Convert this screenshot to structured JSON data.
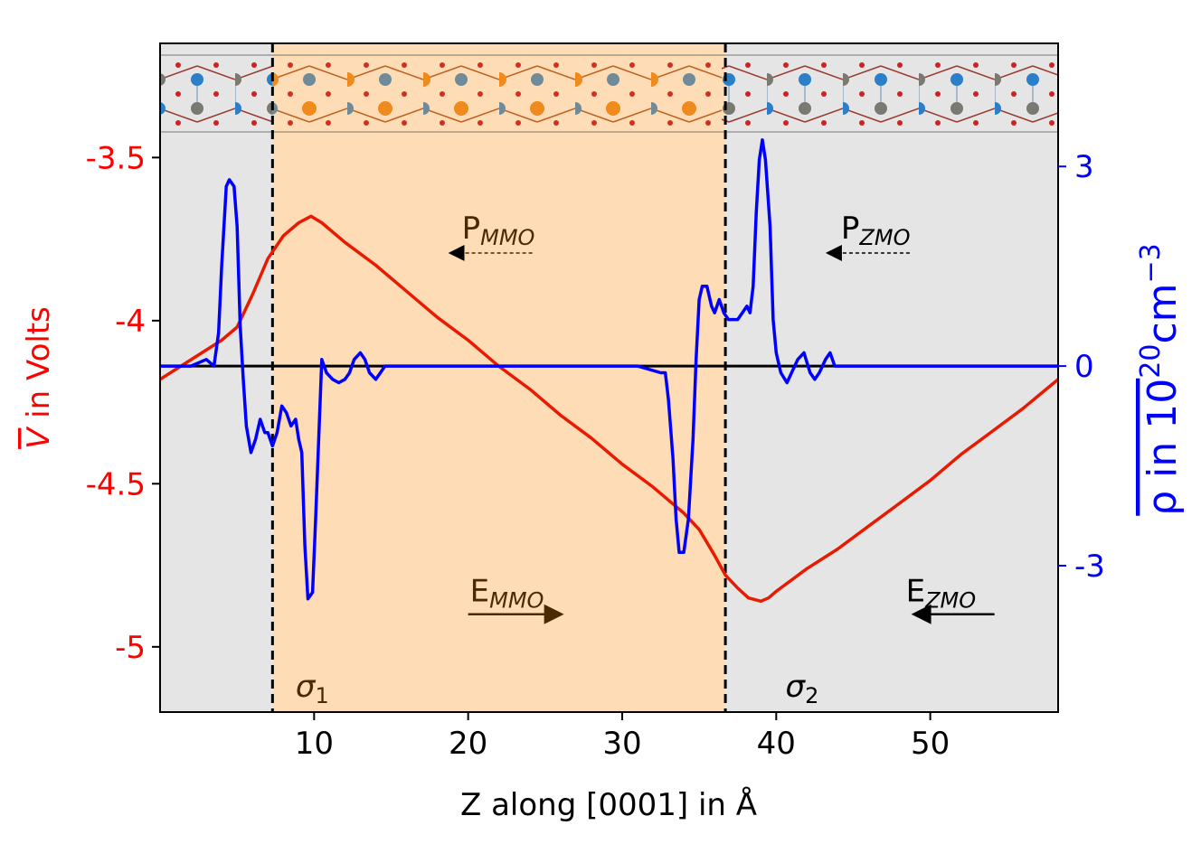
{
  "chart_data": {
    "type": "line",
    "title": "",
    "xlabel": "Z along [0001] in Å",
    "ylabel_left": {
      "pre": "",
      "sym": "V",
      "post": " in Volts"
    },
    "ylabel_right": {
      "pre": "ρ in 10",
      "sup1": "20",
      "mid": "cm",
      "sup2": "−3"
    },
    "xlim": [
      0,
      58.3
    ],
    "ylim_left": [
      -5.2,
      -3.15
    ],
    "ylim_right": [
      -5.2,
      4.85
    ],
    "x_ticks": [
      10,
      20,
      30,
      40,
      50
    ],
    "x_tick_labels": [
      "10",
      "20",
      "30",
      "40",
      "50"
    ],
    "left_ticks": [
      -3.5,
      -4,
      -4.5,
      -5
    ],
    "left_tick_labels": [
      "-3.5",
      "-4",
      "-4.5",
      "-5"
    ],
    "right_ticks": [
      3,
      0,
      -3
    ],
    "right_tick_labels": [
      "3",
      "0",
      "-3"
    ],
    "colors": {
      "potential": "#e81a00",
      "charge": "#0000ff",
      "region_zmo": "#e5e5e5",
      "region_mmo": "#fedcb5",
      "left_axis": "#ff0000",
      "right_axis": "#0000ff",
      "annotation_mmo": "#4a2a00",
      "annotation_zmo": "#000000"
    },
    "regions": [
      {
        "name": "ZMO",
        "x0": 0,
        "x1": 7.3
      },
      {
        "name": "MMO",
        "x0": 7.3,
        "x1": 36.7
      },
      {
        "name": "ZMO",
        "x0": 36.7,
        "x1": 58.3
      }
    ],
    "interfaces": [
      7.3,
      36.7
    ],
    "zero_line_right": 0,
    "series": [
      {
        "name": "V average",
        "axis": "left",
        "x": [
          0,
          2,
          4,
          5,
          6,
          7,
          8,
          9,
          9.8,
          10.5,
          12,
          14,
          16,
          18,
          20,
          22,
          24,
          26,
          28,
          30,
          32,
          33,
          34,
          35,
          35.5,
          36,
          36.7,
          37.5,
          38.2,
          39,
          39.5,
          40,
          42,
          44,
          46,
          48,
          50,
          52,
          54,
          56,
          58.3
        ],
        "y": [
          -4.18,
          -4.12,
          -4.06,
          -4.02,
          -3.92,
          -3.81,
          -3.74,
          -3.7,
          -3.68,
          -3.7,
          -3.76,
          -3.83,
          -3.91,
          -3.99,
          -4.06,
          -4.14,
          -4.21,
          -4.29,
          -4.36,
          -4.44,
          -4.51,
          -4.55,
          -4.59,
          -4.64,
          -4.68,
          -4.72,
          -4.78,
          -4.82,
          -4.85,
          -4.86,
          -4.85,
          -4.83,
          -4.76,
          -4.7,
          -4.63,
          -4.56,
          -4.49,
          -4.41,
          -4.34,
          -4.27,
          -4.18
        ]
      },
      {
        "name": "rho average",
        "axis": "right",
        "x": [
          0,
          1,
          2,
          3,
          3.5,
          3.8,
          4,
          4.3,
          4.5,
          4.8,
          5,
          5.2,
          5.4,
          5.6,
          5.9,
          6.2,
          6.5,
          6.8,
          7,
          7.3,
          7.6,
          7.9,
          8.2,
          8.5,
          8.8,
          9,
          9.2,
          9.4,
          9.6,
          9.9,
          10.1,
          10.3,
          10.5,
          10.8,
          11.2,
          11.6,
          12,
          12.3,
          12.6,
          13,
          13.3,
          13.6,
          14,
          14.3,
          14.6,
          15,
          16,
          20,
          24,
          28,
          31,
          32.5,
          32.8,
          33,
          33.3,
          33.5,
          33.7,
          34,
          34.3,
          34.6,
          34.8,
          35,
          35.2,
          35.5,
          35.8,
          36,
          36.3,
          36.6,
          36.9,
          37.2,
          37.5,
          37.8,
          38.1,
          38.3,
          38.5,
          38.7,
          38.9,
          39.1,
          39.3,
          39.6,
          39.8,
          40,
          40.3,
          40.7,
          41,
          41.4,
          41.8,
          42.2,
          42.5,
          42.8,
          43.2,
          43.5,
          43.8,
          44.2,
          45,
          48,
          52,
          58.3
        ],
        "y": [
          0,
          0,
          0,
          0.1,
          0,
          0.5,
          1.5,
          2.7,
          2.8,
          2.7,
          2.1,
          0.6,
          -0.2,
          -0.9,
          -1.3,
          -1.1,
          -0.8,
          -1,
          -1,
          -1.2,
          -1,
          -0.6,
          -0.7,
          -0.9,
          -0.8,
          -1.1,
          -1.3,
          -2.7,
          -3.5,
          -3.4,
          -2.3,
          -1.1,
          0.1,
          -0.1,
          -0.2,
          -0.25,
          -0.2,
          -0.1,
          0.1,
          0.2,
          0.1,
          -0.1,
          -0.2,
          -0.1,
          0,
          0,
          0,
          0,
          0,
          0,
          0,
          -0.1,
          -0.1,
          -0.5,
          -1.4,
          -2.3,
          -2.8,
          -2.8,
          -2.3,
          -1.1,
          0.1,
          1,
          1.2,
          1.2,
          0.9,
          0.8,
          1,
          0.8,
          0.7,
          0.7,
          0.7,
          0.8,
          0.9,
          0.8,
          1.2,
          2.3,
          3.1,
          3.4,
          3.1,
          2.1,
          0.7,
          0.2,
          -0.1,
          -0.25,
          -0.1,
          0.1,
          0.2,
          -0.1,
          -0.2,
          -0.1,
          0.1,
          0.2,
          0,
          0,
          0,
          0,
          0,
          0
        ]
      }
    ],
    "annotations": {
      "p_mmo": {
        "base": "P",
        "sub": "MMO",
        "x": 19,
        "y_right": 1.7,
        "arrow": "left",
        "style": "dashed"
      },
      "p_zmo": {
        "base": "P",
        "sub": "ZMO",
        "x": 43.5,
        "y_right": 1.7,
        "arrow": "left",
        "style": "dashed"
      },
      "e_mmo": {
        "base": "E",
        "sub": "MMO",
        "x": 20,
        "y_left": -4.9,
        "arrow": "right",
        "style": "solid"
      },
      "e_zmo": {
        "base": "E",
        "sub": "ZMO",
        "x": 49,
        "y_left": -4.9,
        "arrow": "left",
        "style": "solid"
      },
      "sigma_1": {
        "base": "σ",
        "sub": "1",
        "x": 8.8,
        "y_left": -5.12
      },
      "sigma_2": {
        "base": "σ",
        "sub": "2",
        "x": 40.6,
        "y_left": -5.12
      }
    }
  }
}
